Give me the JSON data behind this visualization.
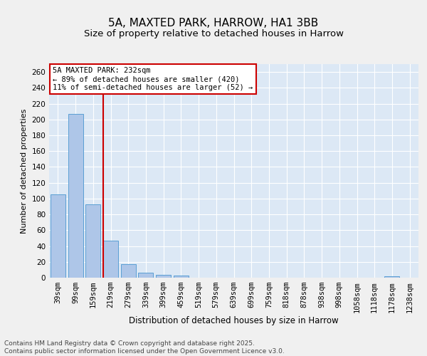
{
  "title": "5A, MAXTED PARK, HARROW, HA1 3BB",
  "subtitle": "Size of property relative to detached houses in Harrow",
  "xlabel": "Distribution of detached houses by size in Harrow",
  "ylabel": "Number of detached properties",
  "categories": [
    "39sqm",
    "99sqm",
    "159sqm",
    "219sqm",
    "279sqm",
    "339sqm",
    "399sqm",
    "459sqm",
    "519sqm",
    "579sqm",
    "639sqm",
    "699sqm",
    "759sqm",
    "818sqm",
    "878sqm",
    "938sqm",
    "998sqm",
    "1058sqm",
    "1118sqm",
    "1178sqm",
    "1238sqm"
  ],
  "values": [
    105,
    207,
    93,
    47,
    17,
    6,
    4,
    3,
    0,
    0,
    0,
    0,
    0,
    0,
    0,
    0,
    0,
    0,
    0,
    2,
    0
  ],
  "bar_color": "#aec6e8",
  "bar_edge_color": "#5a9fd4",
  "vline_color": "#cc0000",
  "vline_x_index": 3,
  "annotation_text": "5A MAXTED PARK: 232sqm\n← 89% of detached houses are smaller (420)\n11% of semi-detached houses are larger (52) →",
  "annotation_box_color": "#cc0000",
  "ylim": [
    0,
    270
  ],
  "yticks": [
    0,
    20,
    40,
    60,
    80,
    100,
    120,
    140,
    160,
    180,
    200,
    220,
    240,
    260
  ],
  "footer_text": "Contains HM Land Registry data © Crown copyright and database right 2025.\nContains public sector information licensed under the Open Government Licence v3.0.",
  "bg_color": "#dce8f5",
  "fig_bg_color": "#f0f0f0",
  "title_fontsize": 11,
  "subtitle_fontsize": 9.5,
  "xlabel_fontsize": 8.5,
  "ylabel_fontsize": 8,
  "tick_fontsize": 7.5,
  "footer_fontsize": 6.5,
  "ann_fontsize": 7.5
}
